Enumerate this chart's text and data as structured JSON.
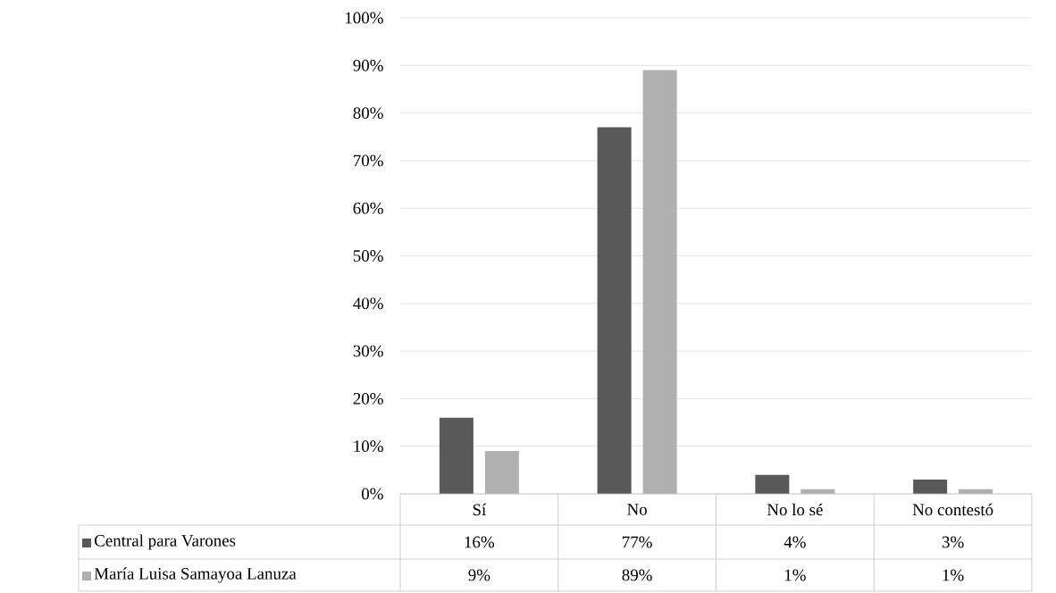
{
  "chart_data": {
    "type": "bar",
    "categories": [
      "Sí",
      "No",
      "No lo sé",
      "No contestó"
    ],
    "series": [
      {
        "name": "Central para Varones",
        "color": "#595959",
        "values": [
          16,
          77,
          4,
          3
        ],
        "value_labels": [
          "16%",
          "77%",
          "4%",
          "3%"
        ]
      },
      {
        "name": "María Luisa Samayoa Lanuza",
        "color": "#b0b0b0",
        "values": [
          9,
          89,
          1,
          1
        ],
        "value_labels": [
          "9%",
          "89%",
          "1%",
          "1%"
        ]
      }
    ],
    "ylim": [
      0,
      100
    ],
    "yticks": [
      {
        "value": 0,
        "label": "0%"
      },
      {
        "value": 10,
        "label": "10%"
      },
      {
        "value": 20,
        "label": "20%"
      },
      {
        "value": 30,
        "label": "30%"
      },
      {
        "value": 40,
        "label": "40%"
      },
      {
        "value": 50,
        "label": "50%"
      },
      {
        "value": 60,
        "label": "60%"
      },
      {
        "value": 70,
        "label": "70%"
      },
      {
        "value": 80,
        "label": "80%"
      },
      {
        "value": 90,
        "label": "90%"
      },
      {
        "value": 100,
        "label": "100%"
      }
    ],
    "grid": "y",
    "legend": "bottom"
  }
}
